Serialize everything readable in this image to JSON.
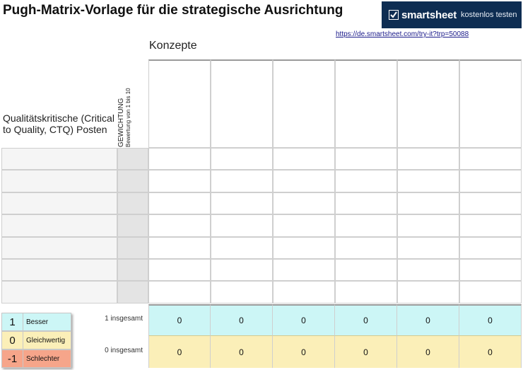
{
  "header": {
    "title": "Pugh-Matrix-Vorlage für die strategische Ausrichtung",
    "brand": "smartsheet",
    "cta": "kostenlos testen",
    "brand_icon": "check-icon",
    "link": "https://de.smartsheet.com/try-it?trp=50088"
  },
  "matrix": {
    "concepts_label": "Konzepte",
    "ctq_label": "Qualitätskritische (Critical to Quality, CTQ) Posten",
    "weight_label": "GEWICHTUNG",
    "weight_sublabel": "Bewertung von 1 bis 10",
    "concept_count": 6,
    "ctq_row_count": 7
  },
  "legend": [
    {
      "symbol": "1",
      "label": "Besser",
      "color": "#ccf6f6"
    },
    {
      "symbol": "0",
      "label": "Gleichwertig",
      "color": "#fbefb8"
    },
    {
      "symbol": "-1",
      "label": "Schlechter",
      "color": "#f6a58a"
    }
  ],
  "totals": [
    {
      "label": "1 insgesamt",
      "values": [
        "0",
        "0",
        "0",
        "0",
        "0",
        "0"
      ],
      "color": "#ccf6f6"
    },
    {
      "label": "0 insgesamt",
      "values": [
        "0",
        "0",
        "0",
        "0",
        "0",
        "0"
      ],
      "color": "#fbefb8"
    }
  ],
  "colors": {
    "banner": "#0e2d52",
    "ctq_cells": "#f5f5f5",
    "weight_cells": "#e4e4e4"
  }
}
